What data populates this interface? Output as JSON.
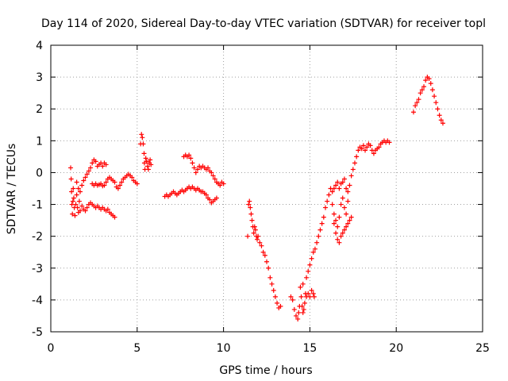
{
  "chart_data": {
    "type": "scatter",
    "title": "Day 114 of 2020, Sidereal Day-to-day VTEC variation (SDTVAR) for receiver topl",
    "xlabel": "GPS time / hours",
    "ylabel": "SDTVAR / TECUs",
    "xlim": [
      0,
      25
    ],
    "ylim": [
      -5,
      4
    ],
    "xticks": [
      0,
      5,
      10,
      15,
      20,
      25
    ],
    "yticks": [
      -5,
      -4,
      -3,
      -2,
      -1,
      0,
      1,
      2,
      3,
      4
    ],
    "grid": true,
    "marker": "+",
    "color": "#ff0000",
    "series": [
      {
        "name": "SDTVAR",
        "points": [
          [
            1.15,
            0.15
          ],
          [
            1.18,
            -0.2
          ],
          [
            1.2,
            -0.6
          ],
          [
            1.22,
            -1.0
          ],
          [
            1.25,
            -1.3
          ],
          [
            1.28,
            -0.9
          ],
          [
            1.3,
            -0.5
          ],
          [
            1.33,
            -0.8
          ],
          [
            1.36,
            -1.1
          ],
          [
            1.4,
            -1.35
          ],
          [
            1.45,
            -1.0
          ],
          [
            1.5,
            -0.7
          ],
          [
            1.55,
            -1.1
          ],
          [
            1.6,
            -1.25
          ],
          [
            1.65,
            -0.9
          ],
          [
            1.7,
            -1.2
          ],
          [
            1.5,
            -0.3
          ],
          [
            1.6,
            -0.5
          ],
          [
            1.7,
            -0.6
          ],
          [
            1.8,
            -0.4
          ],
          [
            1.9,
            -0.25
          ],
          [
            2.0,
            -0.15
          ],
          [
            2.1,
            -0.05
          ],
          [
            2.2,
            0.05
          ],
          [
            2.3,
            0.15
          ],
          [
            2.4,
            0.3
          ],
          [
            2.5,
            0.4
          ],
          [
            2.6,
            0.35
          ],
          [
            2.7,
            0.2
          ],
          [
            2.8,
            0.25
          ],
          [
            2.9,
            0.3
          ],
          [
            3.0,
            0.2
          ],
          [
            3.1,
            0.3
          ],
          [
            3.2,
            0.25
          ],
          [
            1.8,
            -1.05
          ],
          [
            1.9,
            -1.15
          ],
          [
            2.0,
            -1.2
          ],
          [
            2.1,
            -1.1
          ],
          [
            2.2,
            -1.0
          ],
          [
            2.3,
            -0.95
          ],
          [
            2.4,
            -1.0
          ],
          [
            2.5,
            -1.05
          ],
          [
            2.6,
            -1.1
          ],
          [
            2.7,
            -1.05
          ],
          [
            2.8,
            -1.1
          ],
          [
            2.9,
            -1.15
          ],
          [
            3.0,
            -1.1
          ],
          [
            3.1,
            -1.15
          ],
          [
            3.2,
            -1.2
          ],
          [
            3.3,
            -1.15
          ],
          [
            3.4,
            -1.25
          ],
          [
            3.5,
            -1.3
          ],
          [
            3.6,
            -1.35
          ],
          [
            3.7,
            -1.4
          ],
          [
            2.4,
            -0.35
          ],
          [
            2.5,
            -0.4
          ],
          [
            2.6,
            -0.35
          ],
          [
            2.7,
            -0.4
          ],
          [
            2.8,
            -0.38
          ],
          [
            2.9,
            -0.35
          ],
          [
            3.0,
            -0.42
          ],
          [
            3.1,
            -0.4
          ],
          [
            3.2,
            -0.3
          ],
          [
            3.3,
            -0.2
          ],
          [
            3.4,
            -0.15
          ],
          [
            3.5,
            -0.2
          ],
          [
            3.6,
            -0.25
          ],
          [
            3.7,
            -0.3
          ],
          [
            3.8,
            -0.45
          ],
          [
            3.9,
            -0.5
          ],
          [
            4.0,
            -0.4
          ],
          [
            4.1,
            -0.3
          ],
          [
            4.2,
            -0.2
          ],
          [
            4.3,
            -0.15
          ],
          [
            4.4,
            -0.1
          ],
          [
            4.5,
            -0.05
          ],
          [
            4.6,
            -0.1
          ],
          [
            4.7,
            -0.15
          ],
          [
            4.8,
            -0.25
          ],
          [
            4.9,
            -0.3
          ],
          [
            5.0,
            -0.35
          ],
          [
            5.2,
            0.9
          ],
          [
            5.25,
            1.2
          ],
          [
            5.3,
            1.1
          ],
          [
            5.35,
            0.9
          ],
          [
            5.4,
            0.6
          ],
          [
            5.42,
            0.3
          ],
          [
            5.45,
            0.1
          ],
          [
            5.5,
            0.45
          ],
          [
            5.55,
            0.35
          ],
          [
            5.6,
            0.2
          ],
          [
            5.65,
            0.1
          ],
          [
            5.7,
            0.3
          ],
          [
            5.75,
            0.4
          ],
          [
            5.8,
            0.25
          ],
          [
            6.6,
            -0.75
          ],
          [
            6.7,
            -0.7
          ],
          [
            6.8,
            -0.75
          ],
          [
            6.9,
            -0.7
          ],
          [
            7.0,
            -0.65
          ],
          [
            7.1,
            -0.6
          ],
          [
            7.2,
            -0.65
          ],
          [
            7.3,
            -0.7
          ],
          [
            7.4,
            -0.65
          ],
          [
            7.5,
            -0.6
          ],
          [
            7.6,
            -0.55
          ],
          [
            7.7,
            -0.6
          ],
          [
            7.8,
            -0.55
          ],
          [
            7.9,
            -0.5
          ],
          [
            8.0,
            -0.45
          ],
          [
            8.1,
            -0.5
          ],
          [
            8.2,
            -0.45
          ],
          [
            8.3,
            -0.5
          ],
          [
            8.4,
            -0.55
          ],
          [
            8.5,
            -0.5
          ],
          [
            8.6,
            -0.55
          ],
          [
            8.7,
            -0.6
          ],
          [
            8.8,
            -0.6
          ],
          [
            8.9,
            -0.65
          ],
          [
            9.0,
            -0.7
          ],
          [
            9.1,
            -0.8
          ],
          [
            9.2,
            -0.85
          ],
          [
            9.3,
            -0.95
          ],
          [
            9.4,
            -0.9
          ],
          [
            9.5,
            -0.85
          ],
          [
            9.6,
            -0.8
          ],
          [
            7.7,
            0.5
          ],
          [
            7.8,
            0.55
          ],
          [
            7.9,
            0.5
          ],
          [
            8.0,
            0.55
          ],
          [
            8.1,
            0.45
          ],
          [
            8.2,
            0.3
          ],
          [
            8.3,
            0.15
          ],
          [
            8.4,
            0.0
          ],
          [
            8.5,
            0.1
          ],
          [
            8.6,
            0.2
          ],
          [
            8.7,
            0.15
          ],
          [
            8.8,
            0.2
          ],
          [
            8.9,
            0.15
          ],
          [
            9.0,
            0.1
          ],
          [
            9.1,
            0.15
          ],
          [
            9.2,
            0.05
          ],
          [
            9.3,
            0.0
          ],
          [
            9.4,
            -0.1
          ],
          [
            9.5,
            -0.2
          ],
          [
            9.6,
            -0.3
          ],
          [
            9.7,
            -0.35
          ],
          [
            9.8,
            -0.4
          ],
          [
            9.9,
            -0.3
          ],
          [
            10.0,
            -0.35
          ],
          [
            11.4,
            -2.0
          ],
          [
            11.45,
            -1.0
          ],
          [
            11.5,
            -0.9
          ],
          [
            11.55,
            -1.1
          ],
          [
            11.6,
            -1.3
          ],
          [
            11.65,
            -1.5
          ],
          [
            11.7,
            -1.7
          ],
          [
            11.75,
            -1.9
          ],
          [
            11.8,
            -1.7
          ],
          [
            11.85,
            -1.8
          ],
          [
            11.9,
            -2.0
          ],
          [
            11.95,
            -2.1
          ],
          [
            12.0,
            -2.0
          ],
          [
            12.1,
            -2.2
          ],
          [
            12.2,
            -2.3
          ],
          [
            12.3,
            -2.5
          ],
          [
            12.4,
            -2.6
          ],
          [
            12.5,
            -2.8
          ],
          [
            12.6,
            -3.0
          ],
          [
            12.7,
            -3.3
          ],
          [
            12.8,
            -3.5
          ],
          [
            12.9,
            -3.7
          ],
          [
            13.0,
            -3.9
          ],
          [
            13.1,
            -4.1
          ],
          [
            13.2,
            -4.25
          ],
          [
            13.3,
            -4.2
          ],
          [
            13.9,
            -3.9
          ],
          [
            14.0,
            -4.0
          ],
          [
            14.1,
            -4.3
          ],
          [
            14.2,
            -4.5
          ],
          [
            14.3,
            -4.6
          ],
          [
            14.35,
            -4.4
          ],
          [
            14.4,
            -4.2
          ],
          [
            14.45,
            -3.6
          ],
          [
            14.5,
            -3.9
          ],
          [
            14.55,
            -4.2
          ],
          [
            14.6,
            -4.4
          ],
          [
            14.65,
            -4.3
          ],
          [
            14.7,
            -4.1
          ],
          [
            14.75,
            -3.8
          ],
          [
            14.8,
            -3.9
          ],
          [
            14.9,
            -3.8
          ],
          [
            15.0,
            -3.9
          ],
          [
            15.1,
            -3.7
          ],
          [
            15.2,
            -3.8
          ],
          [
            15.25,
            -3.9
          ],
          [
            14.6,
            -3.5
          ],
          [
            14.8,
            -3.3
          ],
          [
            14.9,
            -3.1
          ],
          [
            15.0,
            -2.9
          ],
          [
            15.1,
            -2.7
          ],
          [
            15.2,
            -2.5
          ],
          [
            15.3,
            -2.4
          ],
          [
            15.4,
            -2.2
          ],
          [
            15.5,
            -2.0
          ],
          [
            15.6,
            -1.8
          ],
          [
            15.7,
            -1.6
          ],
          [
            15.8,
            -1.4
          ],
          [
            15.9,
            -1.1
          ],
          [
            16.0,
            -0.9
          ],
          [
            16.1,
            -0.7
          ],
          [
            16.2,
            -0.5
          ],
          [
            16.3,
            -0.6
          ],
          [
            16.4,
            -0.5
          ],
          [
            16.5,
            -0.4
          ],
          [
            16.6,
            -0.3
          ],
          [
            16.7,
            -0.5
          ],
          [
            16.8,
            -0.35
          ],
          [
            16.9,
            -0.3
          ],
          [
            17.0,
            -0.2
          ],
          [
            16.3,
            -1.0
          ],
          [
            16.4,
            -1.3
          ],
          [
            16.5,
            -1.5
          ],
          [
            16.6,
            -1.7
          ],
          [
            16.7,
            -1.4
          ],
          [
            16.8,
            -1.0
          ],
          [
            16.9,
            -0.8
          ],
          [
            17.0,
            -1.1
          ],
          [
            17.1,
            -1.3
          ],
          [
            17.2,
            -0.9
          ],
          [
            16.4,
            -1.6
          ],
          [
            16.5,
            -1.9
          ],
          [
            16.6,
            -2.1
          ],
          [
            16.7,
            -2.2
          ],
          [
            16.8,
            -2.0
          ],
          [
            16.9,
            -1.9
          ],
          [
            17.0,
            -1.8
          ],
          [
            17.1,
            -1.7
          ],
          [
            17.2,
            -1.6
          ],
          [
            17.3,
            -1.5
          ],
          [
            17.4,
            -1.4
          ],
          [
            17.1,
            -0.5
          ],
          [
            17.2,
            -0.6
          ],
          [
            17.3,
            -0.4
          ],
          [
            17.4,
            -0.1
          ],
          [
            17.5,
            0.1
          ],
          [
            17.6,
            0.3
          ],
          [
            17.7,
            0.5
          ],
          [
            17.8,
            0.7
          ],
          [
            17.9,
            0.8
          ],
          [
            18.0,
            0.75
          ],
          [
            18.1,
            0.85
          ],
          [
            18.2,
            0.7
          ],
          [
            18.3,
            0.8
          ],
          [
            18.4,
            0.9
          ],
          [
            18.5,
            0.85
          ],
          [
            18.6,
            0.7
          ],
          [
            18.7,
            0.6
          ],
          [
            18.8,
            0.7
          ],
          [
            18.9,
            0.75
          ],
          [
            19.0,
            0.8
          ],
          [
            19.1,
            0.9
          ],
          [
            19.2,
            0.95
          ],
          [
            19.3,
            1.0
          ],
          [
            19.4,
            0.95
          ],
          [
            19.5,
            1.0
          ],
          [
            19.6,
            0.95
          ],
          [
            21.0,
            1.9
          ],
          [
            21.1,
            2.1
          ],
          [
            21.2,
            2.2
          ],
          [
            21.3,
            2.3
          ],
          [
            21.4,
            2.5
          ],
          [
            21.5,
            2.6
          ],
          [
            21.6,
            2.7
          ],
          [
            21.7,
            2.9
          ],
          [
            21.8,
            3.0
          ],
          [
            21.9,
            2.95
          ],
          [
            22.0,
            2.8
          ],
          [
            22.1,
            2.6
          ],
          [
            22.2,
            2.4
          ],
          [
            22.3,
            2.2
          ],
          [
            22.4,
            2.0
          ],
          [
            22.5,
            1.8
          ],
          [
            22.6,
            1.65
          ],
          [
            22.7,
            1.55
          ]
        ]
      }
    ]
  }
}
